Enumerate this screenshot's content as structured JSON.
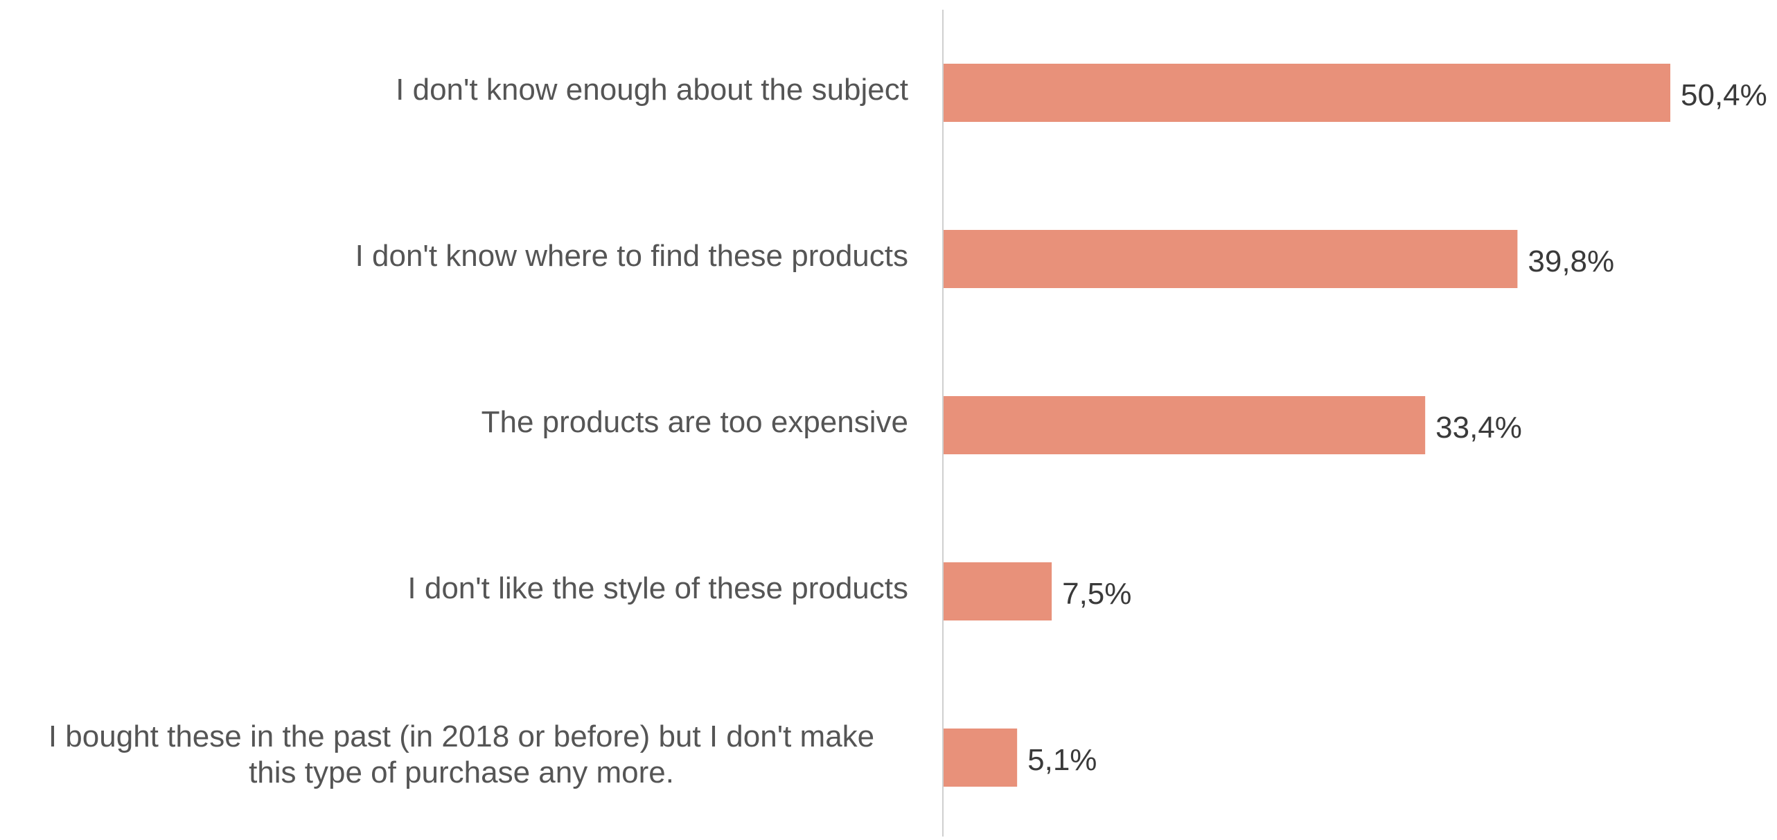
{
  "chart_data": {
    "type": "bar",
    "orientation": "horizontal",
    "categories": [
      "I don't know enough about the subject",
      "I don't know where to find these products",
      "The products are too expensive",
      "I don't like the style of these products",
      "I bought these in the past (in 2018 or before) but I don't make\nthis type of purchase any more."
    ],
    "values": [
      50.4,
      39.8,
      33.4,
      7.5,
      5.1
    ],
    "value_labels": [
      "50,4%",
      "39,8%",
      "33,4%",
      "7,5%",
      "5,1%"
    ],
    "title": "",
    "xlabel": "",
    "ylabel": "",
    "xlim": [
      0,
      50.4
    ],
    "grid": false,
    "legend": "none",
    "bar_color": "#e8917a",
    "axis_color": "#cfcfcf"
  }
}
